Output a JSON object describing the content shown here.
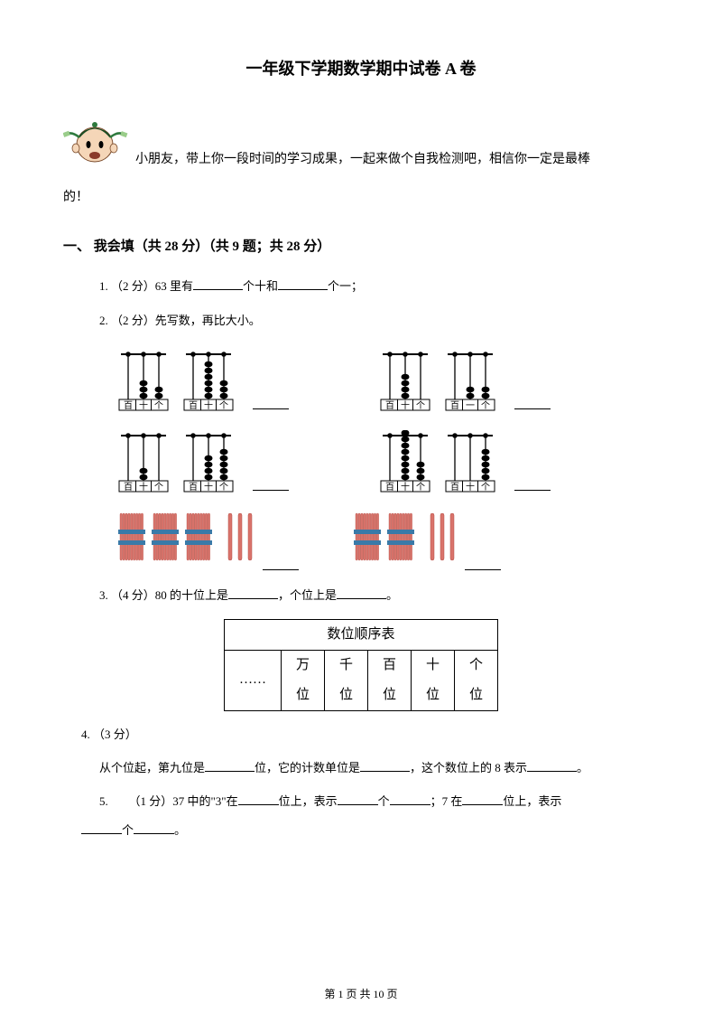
{
  "title": "一年级下学期数学期中试卷 A 卷",
  "intro": {
    "line1": "小朋友，带上你一段时间的学习成果，一起来做个自我检测吧，相信你一定是最棒",
    "line2": "的！"
  },
  "section1": {
    "header": "一、 我会填（共 28 分）（共 9 题；共 28 分）",
    "q1": {
      "prefix": "1. （2 分）63 里有",
      "mid": "个十和",
      "suffix": "个一；"
    },
    "q2": {
      "text": "2. （2 分）先写数，再比大小。",
      "abacuses": [
        {
          "beads": [
            0,
            3,
            2
          ],
          "labels": [
            "百",
            "十",
            "个"
          ]
        },
        {
          "beads": [
            0,
            6,
            3
          ],
          "labels": [
            "百",
            "十",
            "个"
          ]
        },
        {
          "beads": [
            0,
            4,
            0
          ],
          "labels": [
            "百",
            "十",
            "个"
          ]
        },
        {
          "beads": [
            0,
            2,
            2
          ],
          "labels": [
            "百",
            "一",
            "个"
          ]
        },
        {
          "beads": [
            0,
            2,
            0
          ],
          "labels": [
            "百",
            "十",
            "个"
          ]
        },
        {
          "beads": [
            0,
            4,
            5
          ],
          "labels": [
            "百",
            "十",
            "个"
          ]
        },
        {
          "beads": [
            0,
            8,
            3
          ],
          "labels": [
            "百",
            "十",
            "个"
          ]
        },
        {
          "beads": [
            0,
            0,
            5
          ],
          "labels": [
            "百",
            "十",
            "个"
          ]
        }
      ],
      "sticks": [
        {
          "bundles": 3,
          "singles": 3
        },
        {
          "bundles": 2,
          "singles": 3
        }
      ]
    },
    "q3": {
      "prefix": "3. （4 分）80 的十位上是",
      "mid": "，个位上是",
      "suffix": "。"
    },
    "table": {
      "title": "数位顺序表",
      "ellipsis": "……",
      "cols": [
        {
          "top": "万",
          "bot": "位"
        },
        {
          "top": "千",
          "bot": "位"
        },
        {
          "top": "百",
          "bot": "位"
        },
        {
          "top": "十",
          "bot": "位"
        },
        {
          "top": "个",
          "bot": "位"
        }
      ]
    },
    "q4": {
      "label": "4. （3 分）",
      "prefix": "从个位起，第九位是",
      "mid1": "位，它的计数单位是",
      "mid2": "，这个数位上的 8 表示",
      "suffix": "。"
    },
    "q5": {
      "prefix": "5. 　　（1 分）37 中的\"3\"在",
      "mid1": "位上，表示",
      "mid2": "个",
      "mid3": "；7 在",
      "mid4": "位上，表示",
      "line2_mid": "个",
      "suffix": "。"
    }
  },
  "footer": {
    "text": "第 1 页 共 10 页"
  },
  "colors": {
    "stick": "#d9736b",
    "stick_border": "#b55048",
    "band": "#3a7aa8",
    "cartoon_skin": "#f5d6b8",
    "cartoon_hat": "#2e7a3e",
    "cartoon_mouth": "#8a3a2a"
  }
}
